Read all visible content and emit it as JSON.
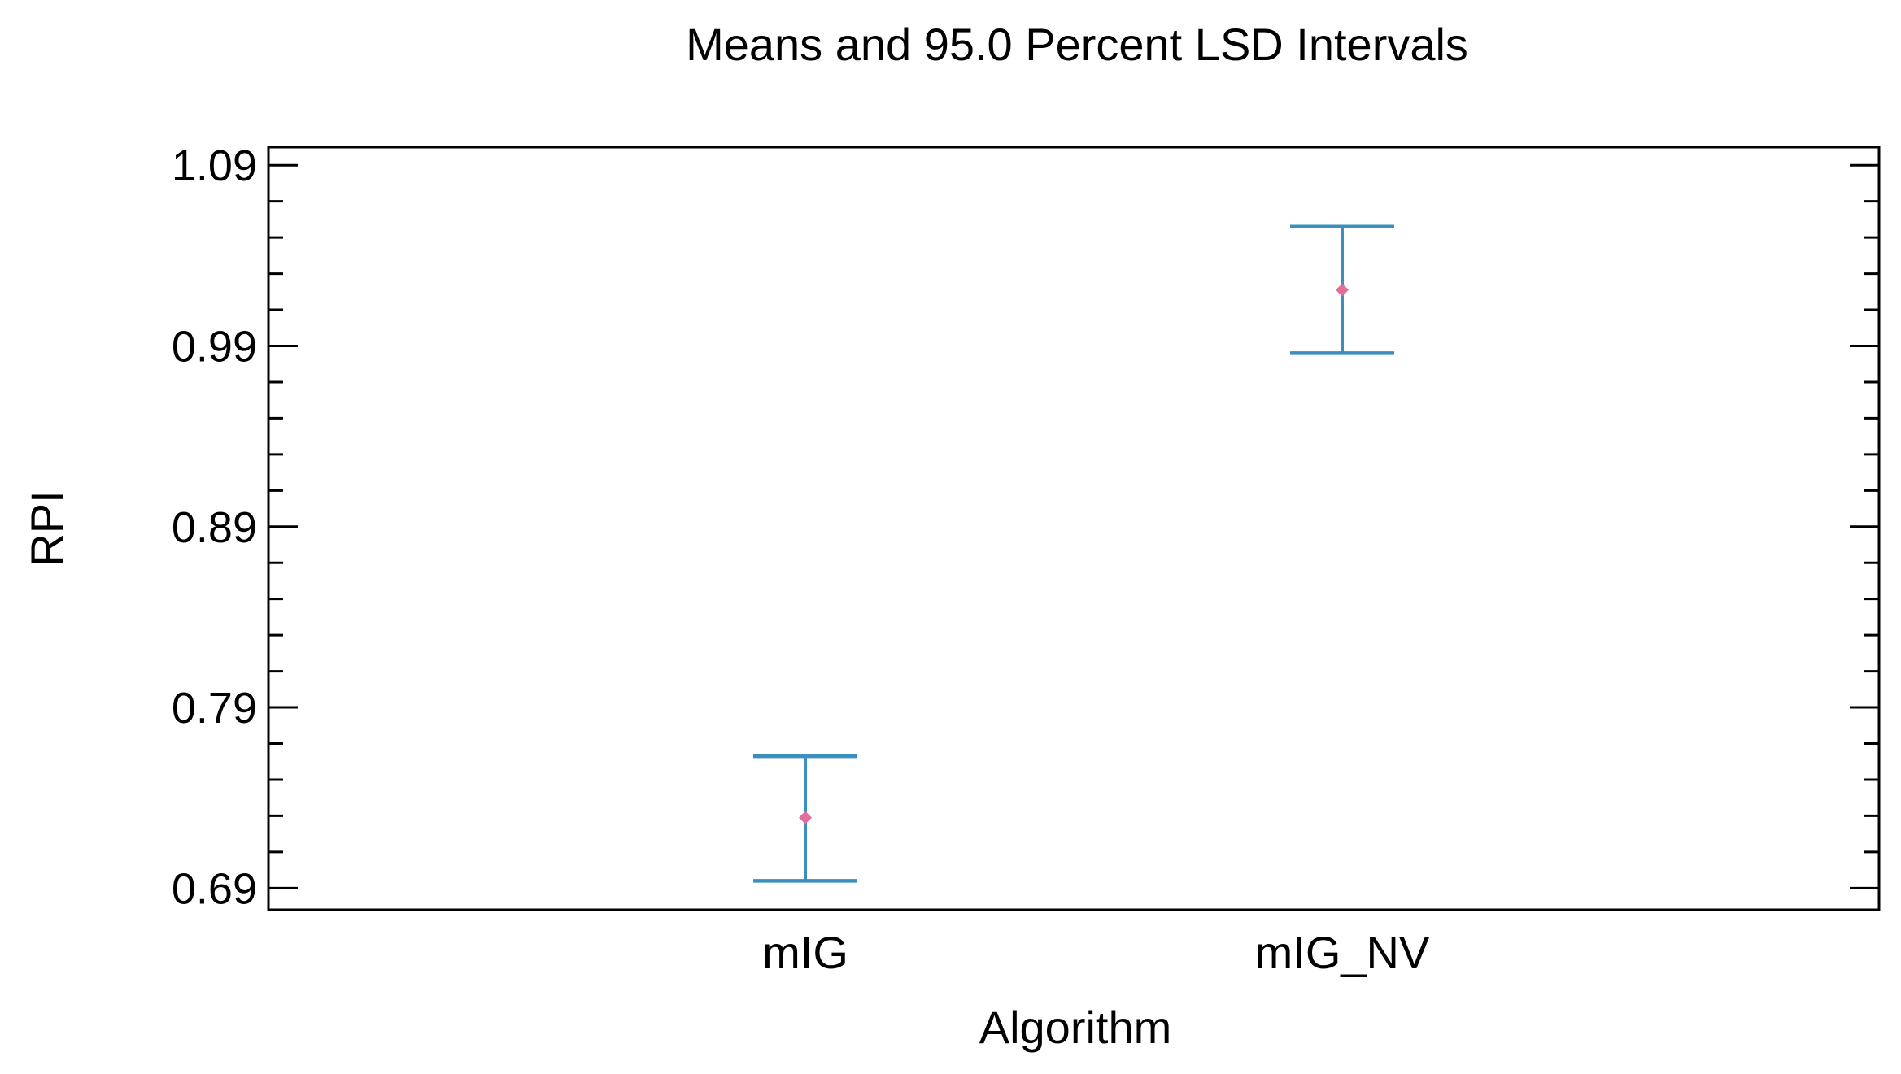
{
  "chart_data": {
    "type": "errorbar",
    "title": "Means and 95.0 Percent LSD Intervals",
    "xlabel": "Algorithm",
    "ylabel": "RPI",
    "categories": [
      "mIG",
      "mIG_NV"
    ],
    "series": [
      {
        "name": "RPI",
        "means": [
          0.729,
          1.021
        ],
        "lower": [
          0.694,
          0.986
        ],
        "upper": [
          0.763,
          1.056
        ]
      }
    ],
    "ylim": [
      0.678,
      1.1
    ],
    "yticks": [
      0.69,
      0.79,
      0.89,
      0.99,
      1.09
    ],
    "ytick_labels": [
      "0.69",
      "0.79",
      "0.89",
      "0.99",
      "1.09"
    ],
    "minor_ticks_per_major": 5,
    "grid": false,
    "legend": "none",
    "colors": {
      "interval": "#3a8fbf",
      "mean": "#e0709a",
      "axis": "#000000"
    }
  }
}
